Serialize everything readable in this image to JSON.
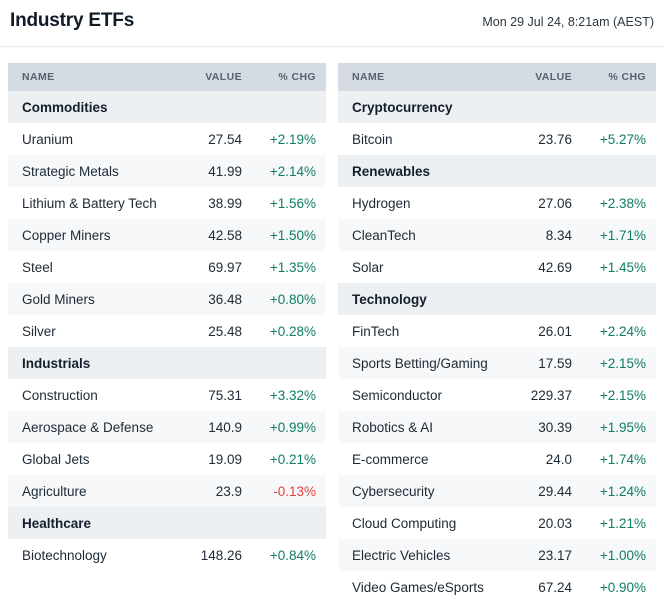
{
  "header": {
    "title": "Industry ETFs",
    "timestamp": "Mon 29 Jul 24, 8:21am (AEST)"
  },
  "columns": [
    "NAME",
    "VALUE",
    "% CHG"
  ],
  "colors": {
    "positive": "#0e7d64",
    "negative": "#e2403b",
    "column_header_bg": "#d4dbe2",
    "section_header_bg": "#edf0f2",
    "alt_row_bg": "#f6f8f9"
  },
  "tables": [
    {
      "sections": [
        {
          "name": "Commodities",
          "rows": [
            {
              "name": "Uranium",
              "value": "27.54",
              "chg": "+2.19%",
              "dir": "up"
            },
            {
              "name": "Strategic Metals",
              "value": "41.99",
              "chg": "+2.14%",
              "dir": "up"
            },
            {
              "name": "Lithium & Battery Tech",
              "value": "38.99",
              "chg": "+1.56%",
              "dir": "up"
            },
            {
              "name": "Copper Miners",
              "value": "42.58",
              "chg": "+1.50%",
              "dir": "up"
            },
            {
              "name": "Steel",
              "value": "69.97",
              "chg": "+1.35%",
              "dir": "up"
            },
            {
              "name": "Gold Miners",
              "value": "36.48",
              "chg": "+0.80%",
              "dir": "up"
            },
            {
              "name": "Silver",
              "value": "25.48",
              "chg": "+0.28%",
              "dir": "up"
            }
          ]
        },
        {
          "name": "Industrials",
          "rows": [
            {
              "name": "Construction",
              "value": "75.31",
              "chg": "+3.32%",
              "dir": "up"
            },
            {
              "name": "Aerospace & Defense",
              "value": "140.9",
              "chg": "+0.99%",
              "dir": "up"
            },
            {
              "name": "Global Jets",
              "value": "19.09",
              "chg": "+0.21%",
              "dir": "up"
            },
            {
              "name": "Agriculture",
              "value": "23.9",
              "chg": "-0.13%",
              "dir": "down"
            }
          ]
        },
        {
          "name": "Healthcare",
          "rows": [
            {
              "name": "Biotechnology",
              "value": "148.26",
              "chg": "+0.84%",
              "dir": "up"
            }
          ]
        }
      ]
    },
    {
      "sections": [
        {
          "name": "Cryptocurrency",
          "rows": [
            {
              "name": "Bitcoin",
              "value": "23.76",
              "chg": "+5.27%",
              "dir": "up"
            }
          ]
        },
        {
          "name": "Renewables",
          "rows": [
            {
              "name": "Hydrogen",
              "value": "27.06",
              "chg": "+2.38%",
              "dir": "up"
            },
            {
              "name": "CleanTech",
              "value": "8.34",
              "chg": "+1.71%",
              "dir": "up"
            },
            {
              "name": "Solar",
              "value": "42.69",
              "chg": "+1.45%",
              "dir": "up"
            }
          ]
        },
        {
          "name": "Technology",
          "rows": [
            {
              "name": "FinTech",
              "value": "26.01",
              "chg": "+2.24%",
              "dir": "up"
            },
            {
              "name": "Sports Betting/Gaming",
              "value": "17.59",
              "chg": "+2.15%",
              "dir": "up"
            },
            {
              "name": "Semiconductor",
              "value": "229.37",
              "chg": "+2.15%",
              "dir": "up"
            },
            {
              "name": "Robotics & AI",
              "value": "30.39",
              "chg": "+1.95%",
              "dir": "up"
            },
            {
              "name": "E-commerce",
              "value": "24.0",
              "chg": "+1.74%",
              "dir": "up"
            },
            {
              "name": "Cybersecurity",
              "value": "29.44",
              "chg": "+1.24%",
              "dir": "up"
            },
            {
              "name": "Cloud Computing",
              "value": "20.03",
              "chg": "+1.21%",
              "dir": "up"
            },
            {
              "name": "Electric Vehicles",
              "value": "23.17",
              "chg": "+1.00%",
              "dir": "up"
            },
            {
              "name": "Video Games/eSports",
              "value": "67.24",
              "chg": "+0.90%",
              "dir": "up"
            }
          ]
        }
      ]
    }
  ]
}
